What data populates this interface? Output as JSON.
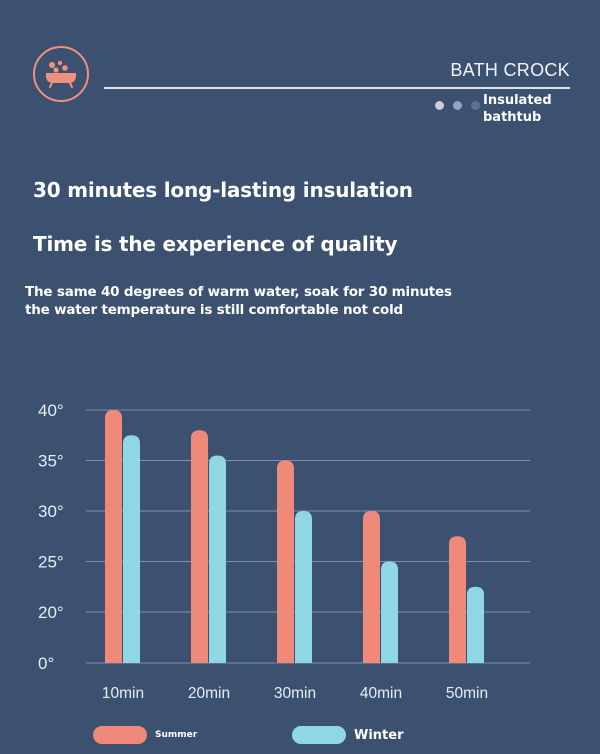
{
  "header": {
    "logo_icon": "bathtub-icon",
    "brand": "BATH CROCK",
    "tagline_line1": "Insulated",
    "tagline_line2": "bathtub",
    "dot_colors": [
      "#c9cfd8",
      "#8fa4c8",
      "#5f7296"
    ]
  },
  "headlines": {
    "line1": "30 minutes long-lasting insulation",
    "line2": "Time is the experience of quality"
  },
  "description": {
    "line1": "The same 40 degrees of warm water, soak for 30 minutes",
    "line2": "the water temperature is still comfortable not cold"
  },
  "colors": {
    "background": "#3c5070",
    "summer": "#ef8a7b",
    "winter": "#8fd8e3",
    "accent": "#f0907e"
  },
  "chart_data": {
    "type": "bar",
    "title": "",
    "xlabel": "",
    "ylabel": "",
    "categories": [
      "10min",
      "20min",
      "30min",
      "40min",
      "50min"
    ],
    "series": [
      {
        "name": "Summer",
        "values": [
          40,
          38,
          35,
          30,
          27.5
        ]
      },
      {
        "name": "Winter",
        "values": [
          37.5,
          35.5,
          30,
          25,
          22.5
        ]
      }
    ],
    "y_ticks": [
      {
        "value": 0,
        "label": "0°"
      },
      {
        "value": 20,
        "label": "20°"
      },
      {
        "value": 25,
        "label": "25°"
      },
      {
        "value": 30,
        "label": "30°"
      },
      {
        "value": 35,
        "label": "35°"
      },
      {
        "value": 40,
        "label": "40°"
      }
    ],
    "grid": true,
    "legend_position": "bottom"
  }
}
